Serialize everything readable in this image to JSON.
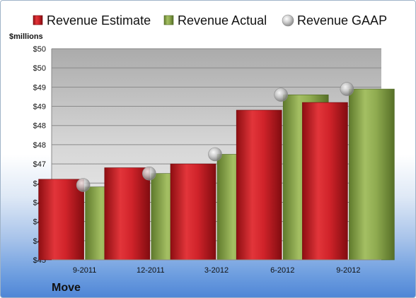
{
  "chart_data": {
    "type": "bar",
    "unit_label": "$millions",
    "company": "Move",
    "categories": [
      "9-2011",
      "12-2011",
      "3-2012",
      "6-2012",
      "9-2012"
    ],
    "series": [
      {
        "name": "Revenue Estimate",
        "kind": "bar",
        "color": "#cc1f26",
        "values": [
          46.6,
          46.9,
          47.0,
          48.4,
          48.6
        ]
      },
      {
        "name": "Revenue Actual",
        "kind": "bar",
        "color": "#8aa44a",
        "values": [
          46.4,
          46.75,
          47.25,
          48.8,
          48.95
        ]
      },
      {
        "name": "Revenue GAAP",
        "kind": "marker",
        "color": "#b8b8b8",
        "values": [
          46.45,
          46.75,
          47.25,
          48.8,
          48.95
        ]
      }
    ],
    "ylim": [
      44.5,
      50.0
    ],
    "y_ticks": [
      44.5,
      45.0,
      45.5,
      46.0,
      46.5,
      47.0,
      47.5,
      48.0,
      48.5,
      49.0,
      49.5,
      50.0
    ],
    "y_tick_labels": [
      "$45",
      "$45",
      "$46",
      "$46",
      "$47",
      "$47",
      "$48",
      "$48",
      "$49",
      "$49",
      "$50",
      "$50"
    ],
    "grid": true,
    "legend_position": "top"
  }
}
